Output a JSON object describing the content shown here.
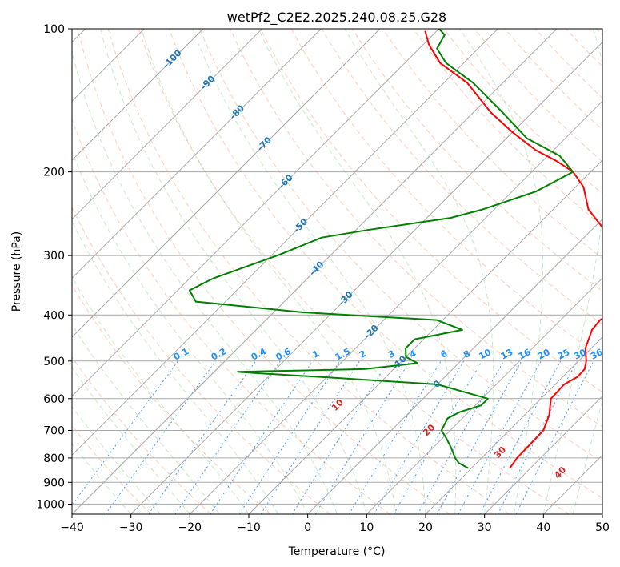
{
  "chart_data": {
    "type": "line",
    "title": "wetPf2_C2E2.2025.240.08.25.G28",
    "xlabel": "Temperature (°C)",
    "ylabel": "Pressure (hPa)",
    "xlim": [
      -40,
      50
    ],
    "ylim": [
      1050,
      100
    ],
    "x_scale": "linear",
    "y_scale": "log (inverted)",
    "x_ticks": [
      "−40",
      "−30",
      "−20",
      "−10",
      "0",
      "10",
      "20",
      "30",
      "40",
      "50"
    ],
    "x_tick_values": [
      -40,
      -30,
      -20,
      -10,
      0,
      10,
      20,
      30,
      40,
      50
    ],
    "y_ticks": [
      "100",
      "200",
      "300",
      "400",
      "500",
      "600",
      "700",
      "800",
      "900",
      "1000"
    ],
    "y_tick_values": [
      100,
      200,
      300,
      400,
      500,
      600,
      700,
      800,
      900,
      1000
    ],
    "grid": true,
    "colors": {
      "temperature": "#ff0000",
      "dewpoint": "#008000",
      "isotherm": "#a9a9a9",
      "dry_adiabat": "#ff7f50",
      "moist_adiabat": "#5fbf5f",
      "mixing_ratio": "#1e90ff",
      "isotherm_label": "#1f77b4",
      "moist_label": "#d62728",
      "mixing_label": "#1e90ff"
    },
    "series": [
      {
        "name": "Temperature",
        "color": "#ff0000",
        "points": [
          [
            841,
            26.5
          ],
          [
            800,
            26.0
          ],
          [
            700,
            25.8
          ],
          [
            650,
            24.2
          ],
          [
            600,
            21.7
          ],
          [
            560,
            21.5
          ],
          [
            540,
            22.5
          ],
          [
            520,
            22.4
          ],
          [
            500,
            21.3
          ],
          [
            470,
            19.0
          ],
          [
            430,
            17.0
          ],
          [
            410,
            16.7
          ],
          [
            395,
            17.5
          ],
          [
            380,
            18.5
          ],
          [
            350,
            17.5
          ],
          [
            320,
            14.0
          ],
          [
            290,
            8.0
          ],
          [
            260,
            1.0
          ],
          [
            240,
            -4.0
          ],
          [
            215,
            -8.7
          ],
          [
            200,
            -13.0
          ],
          [
            190,
            -17.5
          ],
          [
            180,
            -23.0
          ],
          [
            165,
            -30.0
          ],
          [
            150,
            -37.0
          ],
          [
            130,
            -46.0
          ],
          [
            118,
            -54.0
          ],
          [
            108,
            -59.0
          ],
          [
            101,
            -62.0
          ]
        ]
      },
      {
        "name": "Dewpoint",
        "color": "#008000",
        "points": [
          [
            841,
            19.5
          ],
          [
            820,
            17.0
          ],
          [
            800,
            15.5
          ],
          [
            760,
            13.0
          ],
          [
            725,
            10.5
          ],
          [
            700,
            8.5
          ],
          [
            660,
            7.5
          ],
          [
            640,
            8.5
          ],
          [
            620,
            11.0
          ],
          [
            600,
            11.0
          ],
          [
            560,
            0.0
          ],
          [
            543,
            -18.0
          ],
          [
            530,
            -33.0
          ],
          [
            527,
            -36.0
          ],
          [
            520,
            -15.0
          ],
          [
            505,
            -7.0
          ],
          [
            490,
            -10.0
          ],
          [
            470,
            -11.5
          ],
          [
            450,
            -11.5
          ],
          [
            430,
            -5.0
          ],
          [
            410,
            -11.0
          ],
          [
            395,
            -35.0
          ],
          [
            375,
            -55.0
          ],
          [
            355,
            -58.0
          ],
          [
            335,
            -56.0
          ],
          [
            300,
            -49.0
          ],
          [
            275,
            -44.5
          ],
          [
            265,
            -38.0
          ],
          [
            250,
            -26.0
          ],
          [
            240,
            -22.0
          ],
          [
            220,
            -16.0
          ],
          [
            200,
            -13.0
          ],
          [
            185,
            -18.0
          ],
          [
            170,
            -26.5
          ],
          [
            150,
            -35.0
          ],
          [
            130,
            -45.0
          ],
          [
            118,
            -53.0
          ],
          [
            110,
            -57.0
          ],
          [
            103,
            -58.0
          ],
          [
            100,
            -60.0
          ]
        ]
      }
    ],
    "isotherm_labels": [
      "-100",
      "-90",
      "-80",
      "-70",
      "-60",
      "-50",
      "-40",
      "-30",
      "-20",
      "-10",
      "0"
    ],
    "mixing_ratio_labels": [
      "0.1",
      "0.2",
      "0.4",
      "0.6",
      "1",
      "1.5",
      "2",
      "3",
      "4",
      "6",
      "8",
      "10",
      "13",
      "16",
      "20",
      "25",
      "30",
      "36"
    ],
    "moist_adiabat_labels": [
      "10",
      "20",
      "30",
      "40"
    ]
  }
}
